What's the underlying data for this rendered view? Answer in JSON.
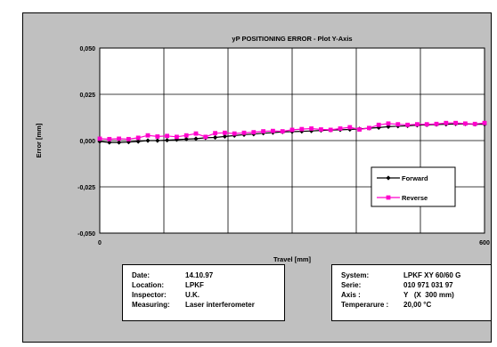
{
  "chart_data": {
    "type": "line",
    "title": "yP   POSITIONING ERROR - Plot Y-Axis",
    "xlabel": "Travel  [mm]",
    "ylabel": "Error  [mm]",
    "xlim": [
      0,
      600
    ],
    "ylim": [
      -0.05,
      0.05
    ],
    "y_ticks": [
      "0,050",
      "0,025",
      "0,000",
      "-0,025",
      "-0,050"
    ],
    "x_tick_labels": [
      "0",
      "600"
    ],
    "grid": true,
    "legend_position": "right",
    "x": [
      0,
      15,
      30,
      45,
      60,
      75,
      90,
      105,
      120,
      135,
      150,
      165,
      180,
      195,
      210,
      225,
      240,
      255,
      270,
      285,
      300,
      315,
      330,
      345,
      360,
      375,
      390,
      405,
      420,
      435,
      450,
      465,
      480,
      495,
      510,
      525,
      540,
      555,
      570,
      585,
      600
    ],
    "series": [
      {
        "name": "Forward",
        "color": "#000000",
        "marker": "diamond",
        "values": [
          -0.0005,
          -0.001,
          -0.001,
          -0.0008,
          -0.0005,
          0.0,
          0.0,
          0.0002,
          0.0005,
          0.0008,
          0.001,
          0.0015,
          0.0017,
          0.0022,
          0.0027,
          0.0032,
          0.0035,
          0.004,
          0.0043,
          0.0047,
          0.0048,
          0.005,
          0.0052,
          0.0055,
          0.0057,
          0.0058,
          0.006,
          0.0063,
          0.0067,
          0.007,
          0.0075,
          0.0078,
          0.008,
          0.0083,
          0.0085,
          0.0087,
          0.0088,
          0.009,
          0.009,
          0.0088,
          0.0088
        ]
      },
      {
        "name": "Reverse",
        "color": "#ff00cc",
        "marker": "square",
        "values": [
          0.001,
          0.0008,
          0.001,
          0.0008,
          0.0015,
          0.0028,
          0.0022,
          0.0025,
          0.002,
          0.0028,
          0.0038,
          0.002,
          0.004,
          0.0042,
          0.0038,
          0.0042,
          0.0045,
          0.005,
          0.0052,
          0.005,
          0.0058,
          0.0062,
          0.0065,
          0.006,
          0.0058,
          0.0065,
          0.0072,
          0.006,
          0.0068,
          0.0085,
          0.0092,
          0.0088,
          0.0085,
          0.0088,
          0.0088,
          0.009,
          0.0095,
          0.0095,
          0.0092,
          0.009,
          0.0095
        ]
      }
    ]
  },
  "info_left": {
    "rows": [
      {
        "label": "Date:",
        "value": "14.10.97"
      },
      {
        "label": "Location:",
        "value": "LPKF"
      },
      {
        "label": "Inspector:",
        "value": "U.K."
      },
      {
        "label": "Measuring:",
        "value": "Laser interferometer"
      }
    ]
  },
  "info_right": {
    "rows": [
      {
        "label": "System:",
        "value": "LPKF XY 60/60 G"
      },
      {
        "label": "Serie:",
        "value": "010 971 031 97"
      },
      {
        "label": "Axis :",
        "value": "Y   (X  300 mm)"
      },
      {
        "label": "Temperarure :",
        "value": "20,00 °C"
      }
    ]
  }
}
